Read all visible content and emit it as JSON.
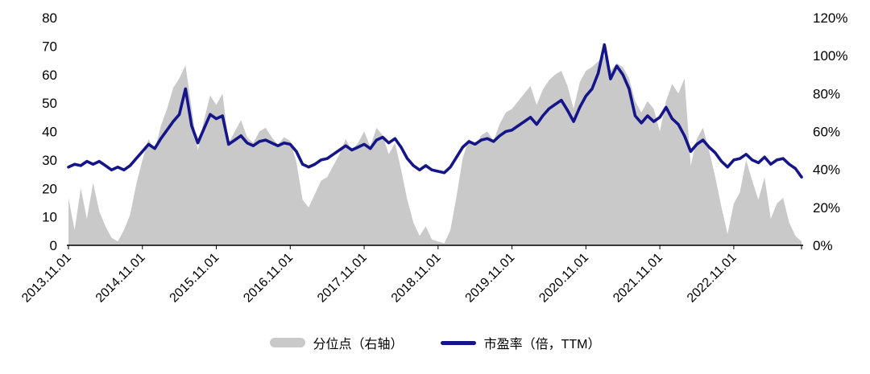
{
  "chart_data": {
    "type": "combo",
    "title": "",
    "grid": false,
    "background": "#ffffff",
    "legend_position": "bottom",
    "x_tick_labels": [
      "2013.11.01",
      "2014.11.01",
      "2015.11.01",
      "2016.11.01",
      "2017.11.01",
      "2018.11.01",
      "2019.11.01",
      "2020.11.01",
      "2021.11.01",
      "2022.11.01"
    ],
    "x_tick_interval_points": 12,
    "left_axis": {
      "min": 0,
      "max": 80,
      "tick_labels": [
        "0",
        "10",
        "20",
        "30",
        "40",
        "50",
        "60",
        "70",
        "80"
      ]
    },
    "right_axis": {
      "min": 0,
      "max": 120,
      "tick_labels": [
        "0%",
        "20%",
        "40%",
        "60%",
        "80%",
        "100%",
        "120%"
      ]
    },
    "axis_color": "#000000",
    "series": [
      {
        "name": "分位点（右轴）",
        "type": "area",
        "axis": "right",
        "color": "#c9c9c9",
        "values": [
          25,
          8,
          30,
          14,
          33,
          18,
          10,
          4,
          2,
          8,
          16,
          32,
          45,
          56,
          50,
          63,
          72,
          83,
          88,
          95,
          72,
          50,
          66,
          79,
          74,
          80,
          54,
          60,
          66,
          57,
          54,
          60,
          62,
          57,
          53,
          57,
          55,
          44,
          24,
          20,
          27,
          34,
          36,
          42,
          48,
          56,
          50,
          54,
          60,
          52,
          62,
          58,
          48,
          54,
          40,
          24,
          12,
          5,
          10,
          3,
          2,
          1,
          8,
          26,
          46,
          56,
          52,
          58,
          60,
          55,
          64,
          70,
          72,
          76,
          80,
          84,
          74,
          82,
          87,
          90,
          92,
          84,
          72,
          86,
          92,
          94,
          97,
          100,
          92,
          96,
          94,
          88,
          76,
          70,
          76,
          72,
          60,
          76,
          85,
          80,
          88,
          42,
          56,
          62,
          50,
          36,
          20,
          6,
          22,
          28,
          45,
          34,
          24,
          36,
          14,
          22,
          25,
          12,
          5,
          2
        ]
      },
      {
        "name": "市盈率（倍，TTM）",
        "type": "line",
        "axis": "left",
        "color": "#15158a",
        "stroke_width": 3.6,
        "values": [
          27.5,
          28.5,
          28,
          29.5,
          28.5,
          29.5,
          28,
          26.5,
          27.5,
          26.5,
          28,
          30.5,
          33,
          35.5,
          34,
          37.5,
          40.5,
          43.5,
          46,
          55,
          42,
          36,
          41,
          46,
          44.5,
          45.5,
          35.5,
          37,
          38.5,
          36,
          35,
          36.5,
          37,
          36,
          35,
          36,
          35.5,
          33,
          28.5,
          27.5,
          28.5,
          30,
          30.5,
          32,
          33.5,
          35,
          33.5,
          34.5,
          35.5,
          34,
          37,
          38,
          36,
          37.5,
          34.5,
          30.5,
          28,
          26.5,
          28,
          26.5,
          26,
          25.5,
          27.5,
          31,
          34.5,
          36.5,
          35.5,
          37,
          37.5,
          36.5,
          38.5,
          40,
          40.5,
          42,
          43.5,
          45,
          42.5,
          45.5,
          48,
          49.5,
          51,
          47.5,
          43.5,
          48.5,
          52.5,
          55,
          60.5,
          70.5,
          58.5,
          63,
          60,
          55,
          45.5,
          43,
          45.5,
          43.5,
          45,
          48.5,
          44.5,
          42.5,
          38.5,
          33,
          35.5,
          37,
          34.5,
          32.5,
          29.5,
          27.5,
          30,
          30.5,
          32,
          30,
          29,
          31,
          28.5,
          30,
          30.5,
          28.5,
          27,
          24
        ]
      }
    ]
  }
}
